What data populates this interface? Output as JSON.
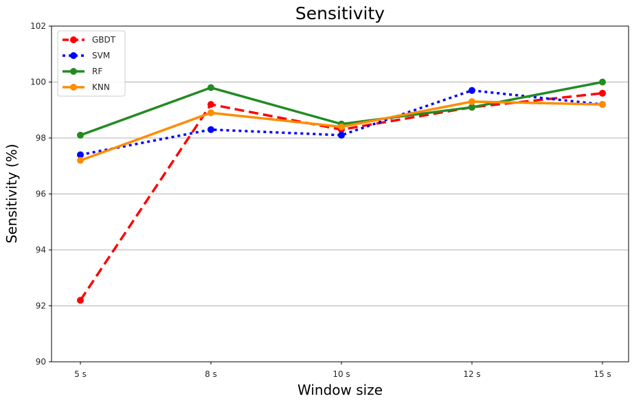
{
  "chart_data": {
    "type": "line",
    "title": "Sensitivity",
    "xlabel": "Window size",
    "ylabel": "Sensitivity (%)",
    "categories": [
      "5 s",
      "8 s",
      "10 s",
      "12 s",
      "15 s"
    ],
    "ylim": [
      90,
      102
    ],
    "yticks": [
      90,
      92,
      94,
      96,
      98,
      100,
      102
    ],
    "grid": "horizontal",
    "legend_position": "top-left",
    "series": [
      {
        "name": "GBDT",
        "color": "#ff0000",
        "style": "dashed",
        "values": [
          92.2,
          99.2,
          98.3,
          99.1,
          99.6
        ]
      },
      {
        "name": "SVM",
        "color": "#0000ff",
        "style": "dotted",
        "values": [
          97.4,
          98.3,
          98.1,
          99.7,
          99.2
        ]
      },
      {
        "name": "RF",
        "color": "#228b22",
        "style": "solid",
        "values": [
          98.1,
          99.8,
          98.5,
          99.1,
          100.0
        ]
      },
      {
        "name": "KNN",
        "color": "#ff8c00",
        "style": "solid",
        "values": [
          97.2,
          98.9,
          98.4,
          99.3,
          99.2
        ]
      }
    ]
  }
}
